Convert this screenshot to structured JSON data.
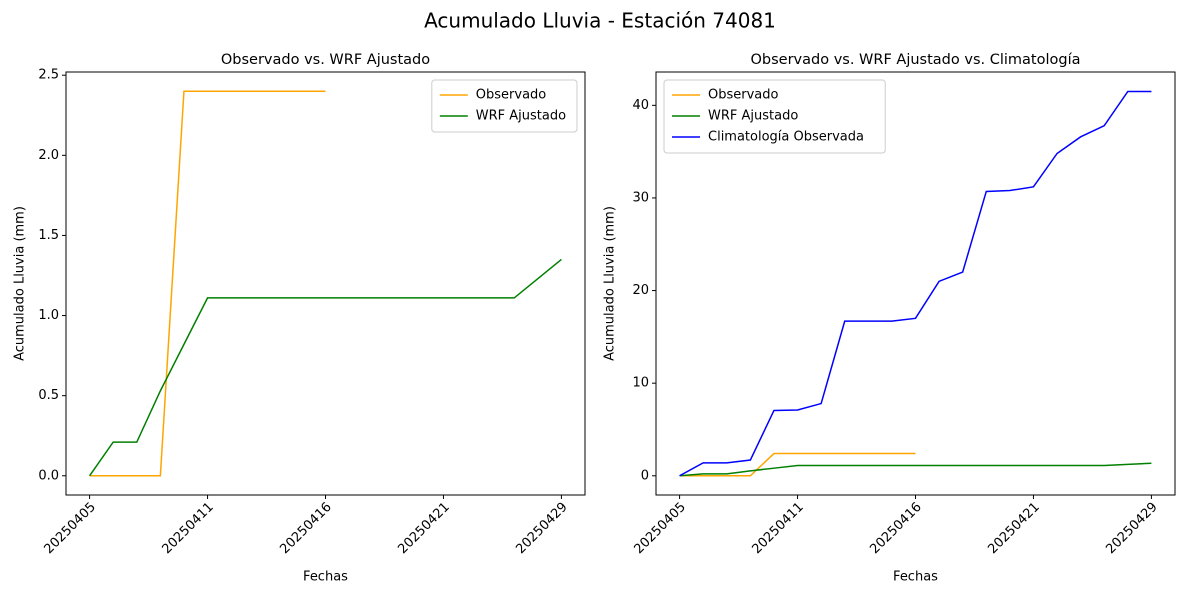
{
  "title": "Acumulado Lluvia - Estación 74081",
  "chart_data": [
    {
      "type": "line",
      "title": "Observado vs. WRF Ajustado",
      "xlabel": "Fechas",
      "ylabel": "Acumulado Lluvia (mm)",
      "categories": [
        "20250405",
        null,
        null,
        null,
        null,
        "20250411",
        null,
        null,
        null,
        null,
        "20250416",
        null,
        null,
        null,
        null,
        "20250421",
        null,
        null,
        null,
        null,
        "20250429"
      ],
      "series": [
        {
          "name": "Observado",
          "color": "orange",
          "values": [
            0,
            0,
            0,
            0,
            2.4,
            2.4,
            2.4,
            2.4,
            2.4,
            2.4,
            2.4,
            null,
            null,
            null,
            null,
            null,
            null,
            null,
            null,
            null,
            null
          ]
        },
        {
          "name": "WRF Ajustado",
          "color": "green",
          "values": [
            0,
            0.21,
            0.21,
            0.53,
            0.82,
            1.11,
            1.11,
            1.11,
            1.11,
            1.11,
            1.11,
            1.11,
            1.11,
            1.11,
            1.11,
            1.11,
            1.11,
            1.11,
            1.11,
            1.23,
            1.35
          ]
        }
      ],
      "ylim": [
        -0.12,
        2.52
      ],
      "yticks": [
        {
          "value": 0,
          "label": "0.0"
        },
        0.5,
        {
          "value": 1,
          "label": "1.0"
        },
        1.5,
        {
          "value": 2,
          "label": "2.0"
        },
        2.5
      ],
      "legend": "upper right",
      "grid": false
    },
    {
      "type": "line",
      "title": "Observado vs. WRF Ajustado vs. Climatología",
      "xlabel": "Fechas",
      "ylabel": "Acumulado Lluvia (mm)",
      "categories": [
        "20250405",
        null,
        null,
        null,
        null,
        "20250411",
        null,
        null,
        null,
        null,
        "20250416",
        null,
        null,
        null,
        null,
        "20250421",
        null,
        null,
        null,
        null,
        "20250429"
      ],
      "series": [
        {
          "name": "Observado",
          "color": "orange",
          "values": [
            0,
            0,
            0,
            0,
            2.4,
            2.4,
            2.4,
            2.4,
            2.4,
            2.4,
            2.4,
            null,
            null,
            null,
            null,
            null,
            null,
            null,
            null,
            null,
            null
          ]
        },
        {
          "name": "WRF Ajustado",
          "color": "green",
          "values": [
            0,
            0.21,
            0.21,
            0.53,
            0.82,
            1.11,
            1.11,
            1.11,
            1.11,
            1.11,
            1.11,
            1.11,
            1.11,
            1.11,
            1.11,
            1.11,
            1.11,
            1.11,
            1.11,
            1.23,
            1.35
          ]
        },
        {
          "name": "Climatología Observada",
          "color": "blue",
          "values": [
            0,
            1.4,
            1.4,
            1.7,
            7.05,
            7.1,
            7.8,
            16.7,
            16.7,
            16.7,
            17.0,
            21.0,
            22.0,
            30.7,
            30.8,
            31.2,
            34.8,
            36.6,
            37.8,
            41.5,
            41.5
          ]
        }
      ],
      "ylim": [
        -2.075,
        43.6
      ],
      "yticks": [
        0,
        10,
        20,
        30,
        40
      ],
      "legend": "upper left",
      "grid": false
    }
  ]
}
